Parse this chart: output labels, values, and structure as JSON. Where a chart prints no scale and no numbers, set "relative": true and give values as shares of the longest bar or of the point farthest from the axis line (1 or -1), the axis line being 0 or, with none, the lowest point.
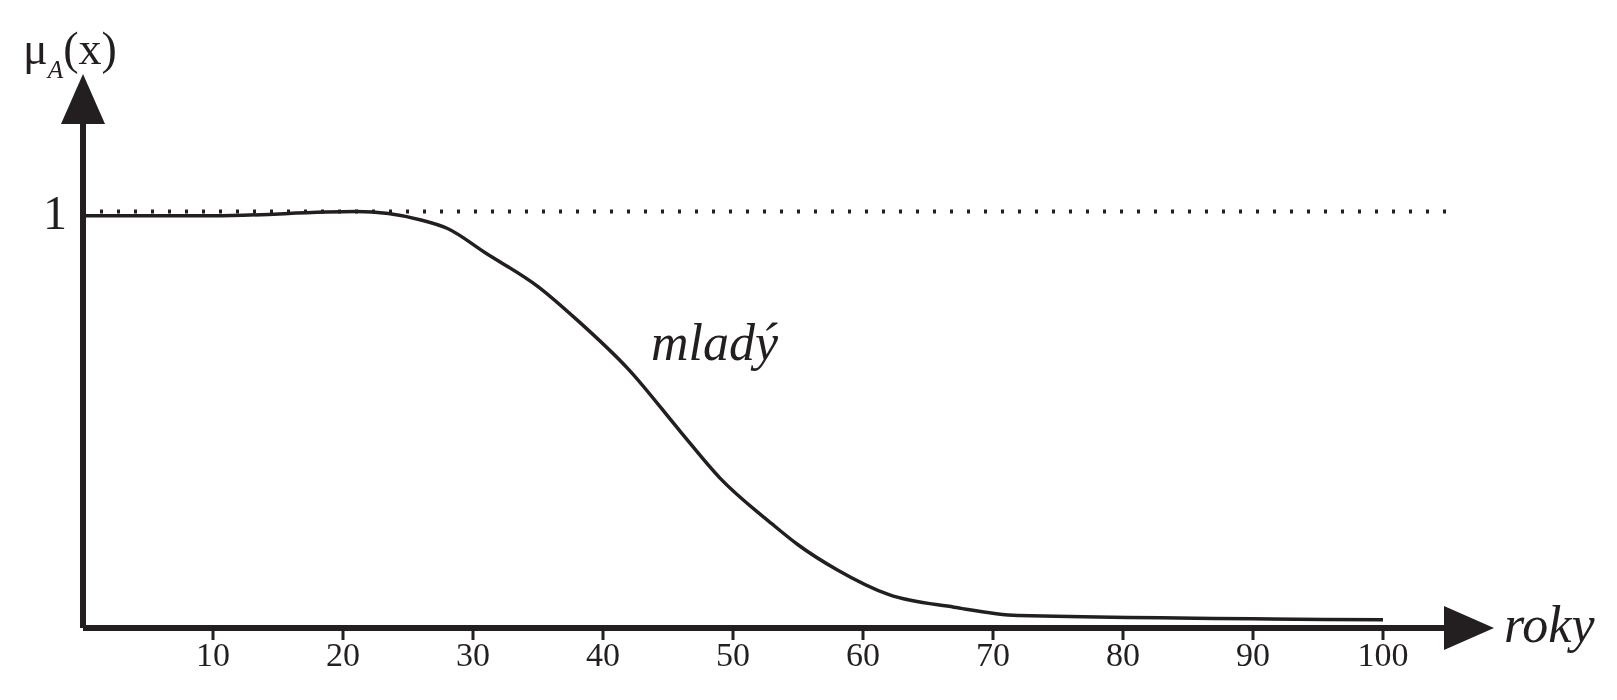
{
  "chart_data": {
    "type": "line",
    "xlabel": "roky",
    "ylabel": "μ$_{A}$(x)",
    "relative": true,
    "x": [
      0,
      10,
      21,
      26,
      28,
      31,
      35,
      38,
      42,
      46,
      49,
      53,
      55,
      58,
      62,
      67,
      72,
      100
    ],
    "series": [
      {
        "name": "mladý",
        "color": "#231f20",
        "values": [
          0.99,
          0.99,
          1,
          0.98,
          0.96,
          0.9,
          0.82,
          0.74,
          0.62,
          0.47,
          0.36,
          0.25,
          0.2,
          0.14,
          0.08,
          0.05,
          0.03,
          0.02
        ]
      }
    ],
    "xlim": [
      0,
      105
    ],
    "xticks": [
      10,
      20,
      30,
      40,
      50,
      60,
      70,
      80,
      90,
      100
    ],
    "ref_lines": [
      {
        "axis": "y",
        "value": 1,
        "label": "1",
        "line_style": "dotted"
      }
    ]
  }
}
